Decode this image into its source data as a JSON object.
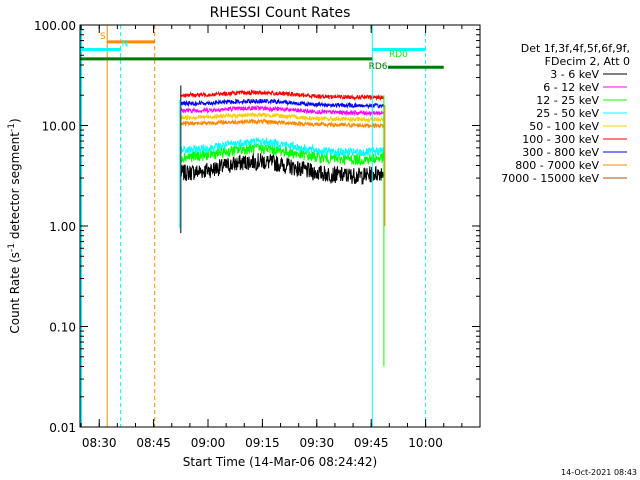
{
  "chart_data": {
    "type": "line",
    "title": "RHESSI Count Rates",
    "xlabel": "Start Time (14-Mar-06 08:24:42)",
    "ylabel_main": "Count Rate (s",
    "ylabel_sup": "-1",
    "ylabel_rest": " detector segment",
    "ylabel_sup2": "-1",
    "ylabel_end": ")",
    "y_scale": "log",
    "ylim": [
      0.01,
      100
    ],
    "xlim": [
      504.7,
      615
    ],
    "x_ticks": [
      {
        "t": 510,
        "label": "08:30"
      },
      {
        "t": 525,
        "label": "08:45"
      },
      {
        "t": 540,
        "label": "09:00"
      },
      {
        "t": 555,
        "label": "09:15"
      },
      {
        "t": 570,
        "label": "09:30"
      },
      {
        "t": 585,
        "label": "09:45"
      },
      {
        "t": 600,
        "label": "10:00"
      }
    ],
    "y_ticks": [
      {
        "v": 0.01,
        "label": "0.01"
      },
      {
        "v": 0.1,
        "label": "0.10"
      },
      {
        "v": 1,
        "label": "1.00"
      },
      {
        "v": 10,
        "label": "10.00"
      },
      {
        "v": 100,
        "label": "100.00"
      }
    ],
    "legend_header": [
      "Det 1f,3f,4f,5f,6f,9f,",
      "FDecim 2, Att 0"
    ],
    "series": [
      {
        "name": "3 - 6 keV",
        "color": "#000000",
        "base": 3.3,
        "hump": 0.35,
        "noise": 0.12,
        "end_rise": 0.1
      },
      {
        "name": "6 - 12 keV",
        "color": "#ff00ff",
        "base": 14.0,
        "hump": 0.08,
        "noise": 0.03,
        "end_rise": 0.0
      },
      {
        "name": "12 - 25 keV",
        "color": "#00ff00",
        "base": 4.8,
        "hump": 0.25,
        "noise": 0.08,
        "end_rise": 0.05
      },
      {
        "name": "25 - 50 keV",
        "color": "#00ffff",
        "base": 5.6,
        "hump": 0.25,
        "noise": 0.06,
        "end_rise": 0.05
      },
      {
        "name": "50 - 100 keV",
        "color": "#ffcc00",
        "base": 12.0,
        "hump": 0.08,
        "noise": 0.03,
        "end_rise": 0.0
      },
      {
        "name": "100 - 300 keV",
        "color": "#ff0000",
        "base": 20.0,
        "hump": 0.08,
        "noise": 0.03,
        "end_rise": 0.0
      },
      {
        "name": "300 - 800 keV",
        "color": "#0000ff",
        "base": 16.5,
        "hump": 0.08,
        "noise": 0.03,
        "end_rise": 0.0
      },
      {
        "name": "800 - 7000 keV",
        "color": "#ff8800",
        "base": 10.5,
        "hump": 0.06,
        "noise": 0.03,
        "end_rise": 0.0
      },
      {
        "name": "7000 - 15000 keV",
        "color": "#aa5500",
        "base": 10.5,
        "hump": 0.0,
        "noise": 0.0,
        "end_rise": 0.0,
        "hidden": true
      }
    ],
    "data_range": [
      532.5,
      588.5
    ],
    "annotations": {
      "S": {
        "label": "S",
        "color": "#ff8800",
        "t_start": 512.2,
        "t_end": 525.3,
        "y": 68
      },
      "N": {
        "label": "N",
        "color": "#00ffff",
        "t_start": 504.7,
        "t_end": 515.9,
        "y": 57
      },
      "N_end": {
        "color": "#00ffff",
        "t_start": 585.3,
        "t_end": 600.0,
        "y": 57
      },
      "RD0": {
        "label": "RD0",
        "color": "#00ff00",
        "t_start": 585.3,
        "t_end": 600.0,
        "y": 48
      },
      "RD6": {
        "label": "RD6",
        "color": "#007700",
        "t_start": 504.7,
        "t_end": 585.3,
        "y": 46
      },
      "RD6_b": {
        "color": "#007700",
        "t_start": 589.6,
        "t_end": 605.0,
        "y": 38
      }
    },
    "vlines": [
      {
        "t": 512.2,
        "color": "#ff8800",
        "dash": false
      },
      {
        "t": 515.9,
        "color": "#00ffff",
        "dash": true
      },
      {
        "t": 525.3,
        "color": "#ff8800",
        "dash": true
      },
      {
        "t": 585.3,
        "color": "#00ffff",
        "dash": false
      },
      {
        "t": 600.0,
        "color": "#00ffff",
        "dash": true
      }
    ],
    "timestamp": "14-Oct-2021 08:43",
    "grid": false
  }
}
